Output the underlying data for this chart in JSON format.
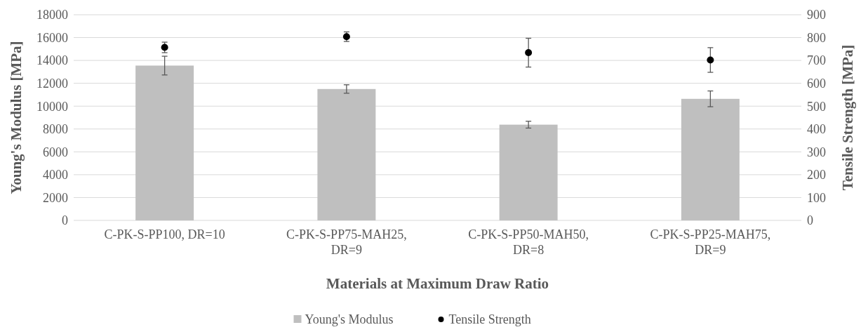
{
  "chart_data": {
    "type": "bar",
    "xlabel": "Materials at Maximum Draw Ratio",
    "ylabel": "Young's Modulus [MPa]",
    "y2label": "Tensile Strength [MPa]",
    "categories": [
      "C-PK-S-PP100, DR=10",
      "C-PK-S-PP75-MAH25, DR=9",
      "C-PK-S-PP50-MAH50, DR=8",
      "C-PK-S-PP25-MAH75, DR=9"
    ],
    "series": [
      {
        "name": "Young's Modulus",
        "color": "#bfbfbf",
        "values": [
          13550,
          11500,
          8380,
          10640
        ],
        "errors": [
          820,
          370,
          300,
          690
        ]
      },
      {
        "name": "Tensile Strength",
        "type": "scatter",
        "axis": "y2",
        "color": "#000000",
        "marker": "circle",
        "values": [
          757,
          804,
          734,
          702
        ],
        "errors": [
          23,
          21,
          63,
          54
        ]
      }
    ],
    "ylim": [
      0,
      18000
    ],
    "yticks": [
      0,
      2000,
      4000,
      6000,
      8000,
      10000,
      12000,
      14000,
      16000,
      18000
    ],
    "y2lim": [
      0,
      900
    ],
    "y2ticks": [
      0,
      100,
      200,
      300,
      400,
      500,
      600,
      700,
      800,
      900
    ],
    "grid": "y",
    "legend": "bottom"
  }
}
